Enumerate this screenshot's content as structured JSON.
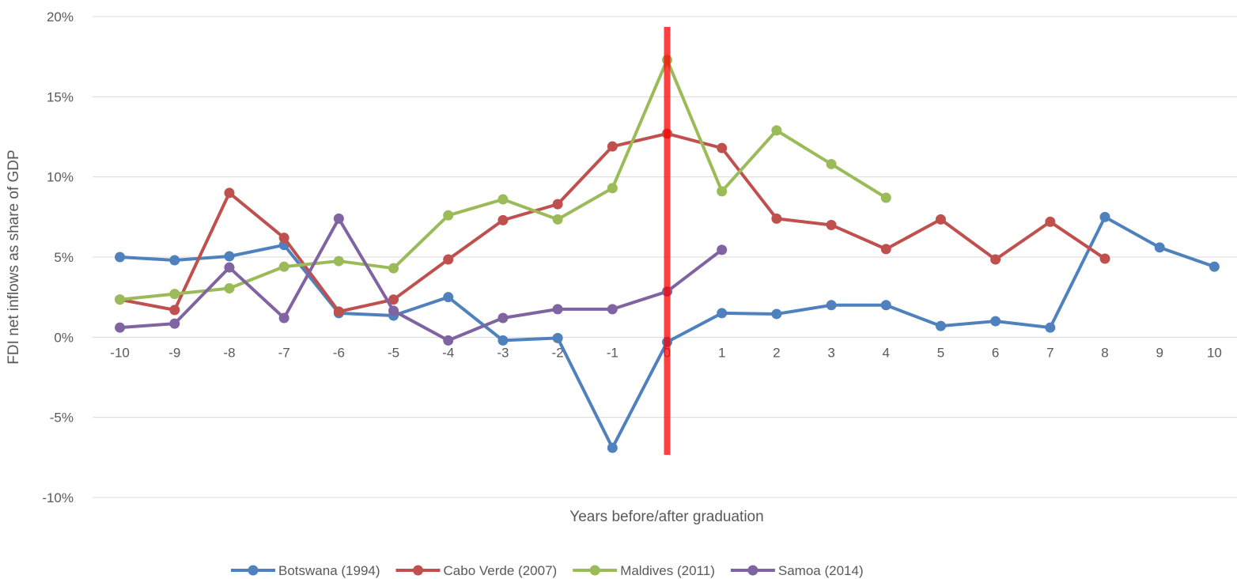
{
  "chart_data": {
    "type": "line",
    "title": "",
    "xlabel": "Years before/after graduation",
    "ylabel": "FDI net inflows as share of GDP",
    "categories": [
      "-10",
      "-9",
      "-8",
      "-7",
      "-6",
      "-5",
      "-4",
      "-3",
      "-2",
      "-1",
      "0",
      "1",
      "2",
      "3",
      "4",
      "5",
      "6",
      "7",
      "8",
      "9",
      "10"
    ],
    "ylim": [
      -10,
      20
    ],
    "y_ticks": [
      20,
      15,
      10,
      5,
      0,
      -5,
      -10
    ],
    "y_tick_labels": [
      "20%",
      "15%",
      "10%",
      "5%",
      "0%",
      "-5%",
      "-10%"
    ],
    "grid": true,
    "legend_position": "bottom",
    "marker": {
      "category": "0",
      "color": "#FF0000",
      "label": ""
    },
    "series": [
      {
        "name": "Botswana (1994)",
        "color": "#4F81BD",
        "values": [
          5.0,
          4.8,
          5.05,
          5.75,
          1.5,
          1.35,
          2.5,
          -0.2,
          -0.05,
          -6.9,
          -0.3,
          1.5,
          1.45,
          2.0,
          2.0,
          0.7,
          1.0,
          0.6,
          7.5,
          5.6,
          4.4
        ]
      },
      {
        "name": "Cabo Verde (2007)",
        "color": "#C0504D",
        "values": [
          2.35,
          1.7,
          9.0,
          6.2,
          1.6,
          2.35,
          4.85,
          7.3,
          8.3,
          11.9,
          12.7,
          11.8,
          7.4,
          7.0,
          5.5,
          7.35,
          4.85,
          7.2,
          4.9,
          null,
          null
        ]
      },
      {
        "name": "Maldives (2011)",
        "color": "#9BBB59",
        "values": [
          2.35,
          2.7,
          3.05,
          4.4,
          4.75,
          4.3,
          7.6,
          8.6,
          7.35,
          9.3,
          17.3,
          9.1,
          12.9,
          10.8,
          8.7,
          null,
          null,
          null,
          null,
          null,
          null
        ]
      },
      {
        "name": "Samoa (2014)",
        "color": "#8064A2",
        "values": [
          0.6,
          0.85,
          4.35,
          1.2,
          7.4,
          1.65,
          -0.2,
          1.2,
          1.75,
          1.75,
          2.85,
          5.45,
          null,
          null,
          null,
          null,
          null,
          null,
          null,
          null,
          null
        ]
      }
    ]
  }
}
